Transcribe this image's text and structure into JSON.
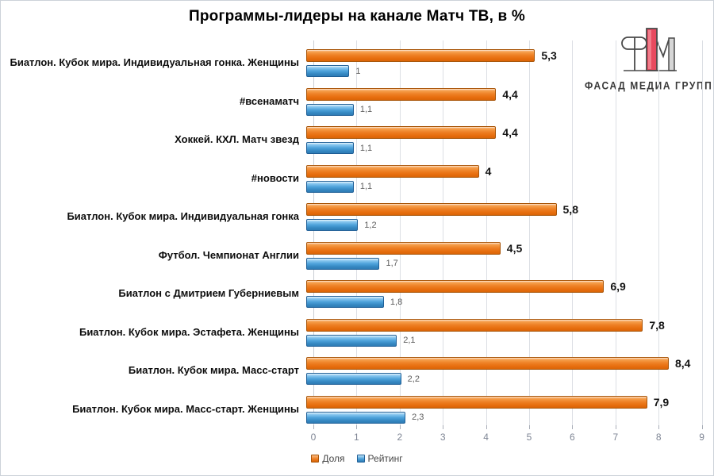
{
  "title": "Программы-лидеры на канале Матч ТВ, в %",
  "logo": {
    "text": "ФАСАД МЕДИА ГРУПП",
    "accent_color": "#e84a5f",
    "gray_color": "#d6d6d6"
  },
  "chart_data": {
    "type": "bar",
    "orientation": "horizontal",
    "title": "Программы-лидеры на канале Матч ТВ, в %",
    "categories": [
      "Биатлон. Кубок мира. Индивидуальная гонка. Женщины",
      "#всенаматч",
      "Хоккей. КХЛ. Матч звезд",
      "#новости",
      "Биатлон. Кубок мира. Индивидуальная гонка",
      "Футбол. Чемпионат Англии",
      "Биатлон с Дмитрием Губерниевым",
      "Биатлон. Кубок мира. Эстафета. Женщины",
      "Биатлон. Кубок мира. Масс-старт",
      "Биатлон. Кубок мира. Масс-старт. Женщины"
    ],
    "series": [
      {
        "name": "Доля",
        "color": "#ee7f24",
        "values": [
          5.3,
          4.4,
          4.4,
          4,
          5.8,
          4.5,
          6.9,
          7.8,
          8.4,
          7.9
        ],
        "labels": [
          "5,3",
          "4,4",
          "4,4",
          "4",
          "5,8",
          "4,5",
          "6,9",
          "7,8",
          "8,4",
          "7,9"
        ]
      },
      {
        "name": "Рейтинг",
        "color": "#4da2da",
        "values": [
          1,
          1.1,
          1.1,
          1.1,
          1.2,
          1.7,
          1.8,
          2.1,
          2.2,
          2.3
        ],
        "labels": [
          "1",
          "1,1",
          "1,1",
          "1,1",
          "1,2",
          "1,7",
          "1,8",
          "2,1",
          "2,2",
          "2,3"
        ]
      }
    ],
    "x_axis": {
      "min": 0,
      "max": 9,
      "ticks": [
        "0",
        "1",
        "2",
        "3",
        "4",
        "5",
        "6",
        "7",
        "8",
        "9"
      ]
    },
    "legend": {
      "position": "bottom",
      "items": [
        "Доля",
        "Рейтинг"
      ]
    },
    "grid": true
  }
}
